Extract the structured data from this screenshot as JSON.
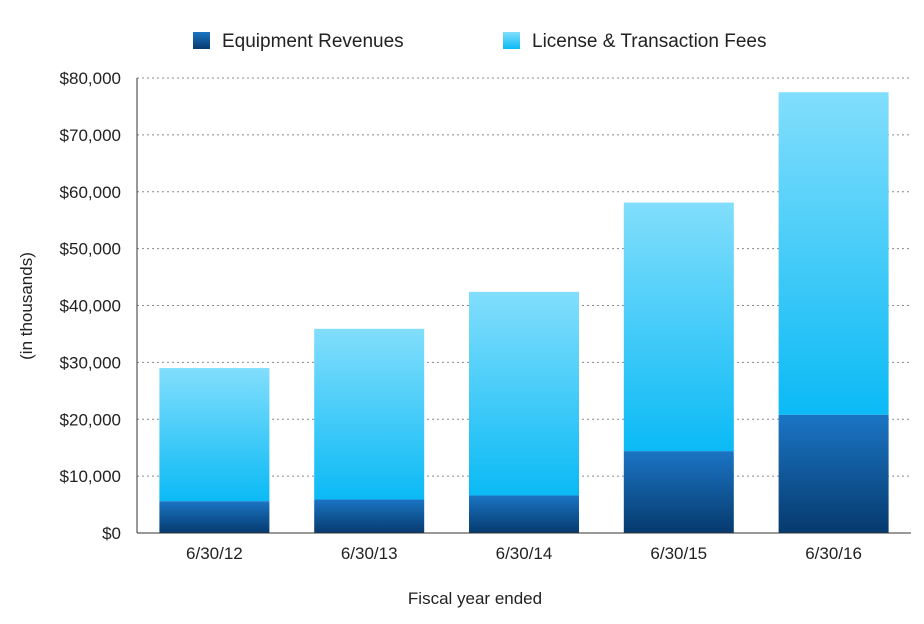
{
  "chart_data": {
    "type": "bar",
    "stacked": true,
    "categories": [
      "6/30/12",
      "6/30/13",
      "6/30/14",
      "6/30/15",
      "6/30/16"
    ],
    "series": [
      {
        "name": "Equipment Revenues",
        "values": [
          5600,
          5900,
          6600,
          14400,
          20800
        ],
        "color": "#0a5a9c"
      },
      {
        "name": "License & Transaction Fees",
        "values": [
          23400,
          30000,
          35800,
          43700,
          56700
        ],
        "color": "#3cc8f5"
      }
    ],
    "totals": [
      29000,
      35900,
      42400,
      58100,
      77500
    ],
    "xlabel": "Fiscal year ended",
    "ylabel": "(in thousands)",
    "ylim": [
      0,
      80000
    ],
    "yticks": [
      0,
      10000,
      20000,
      30000,
      40000,
      50000,
      60000,
      70000,
      80000
    ],
    "ytick_labels": [
      "$0",
      "$10,000",
      "$20,000",
      "$30,000",
      "$40,000",
      "$50,000",
      "$60,000",
      "$70,000",
      "$80,000"
    ],
    "grid": true,
    "legend_position": "top"
  }
}
